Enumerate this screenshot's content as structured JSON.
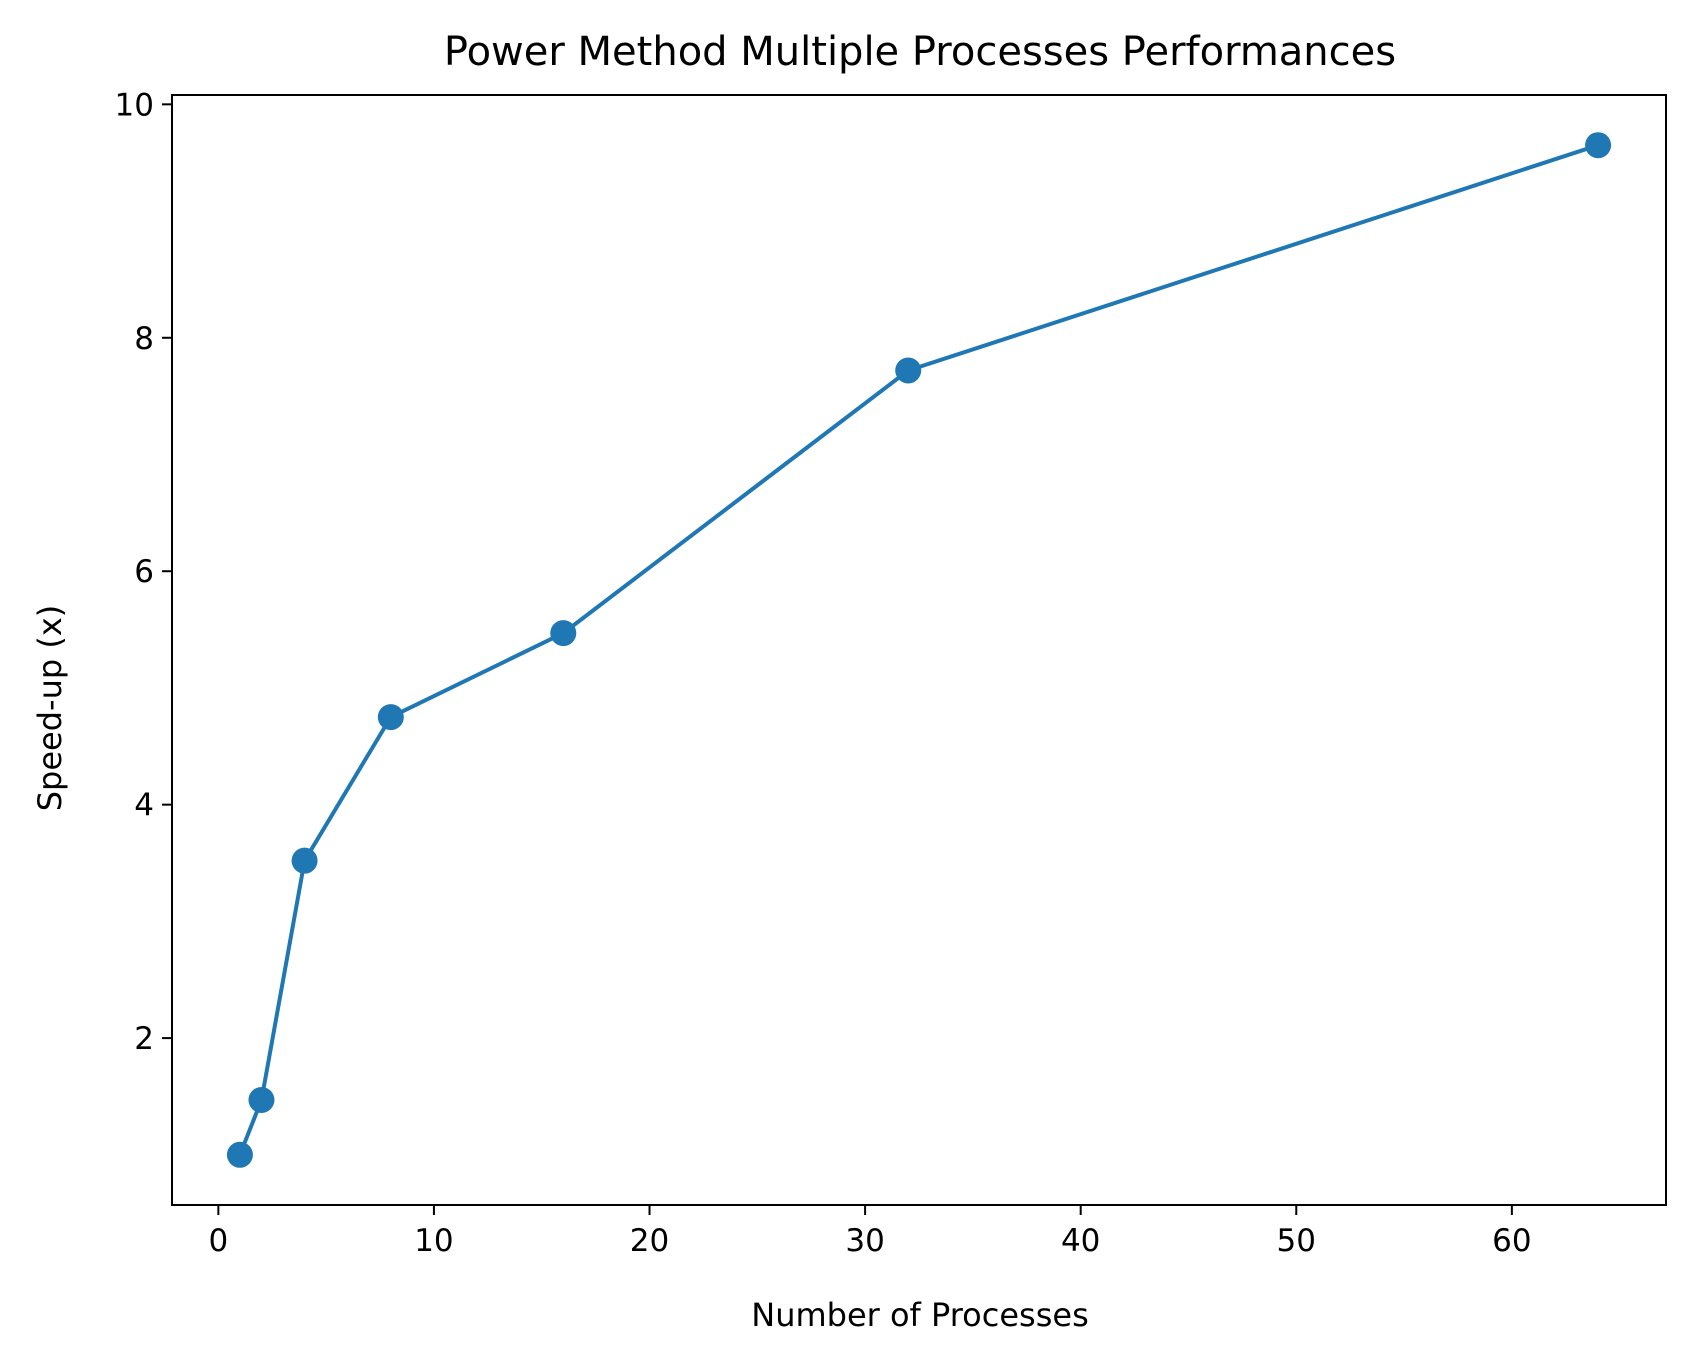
{
  "chart_data": {
    "type": "line",
    "title": "Power Method Multiple Processes Performances",
    "xlabel": "Number of Processes",
    "ylabel": "Speed-up (x)",
    "xlim": [
      -2.15,
      67.15
    ],
    "ylim": [
      0.57,
      10.08
    ],
    "xticks": [
      0,
      10,
      20,
      30,
      40,
      50,
      60
    ],
    "yticks": [
      2,
      4,
      6,
      8,
      10
    ],
    "grid": false,
    "series": [
      {
        "color": "#1f77b4",
        "marker": "circle",
        "x": [
          1,
          2,
          4,
          8,
          16,
          32,
          64
        ],
        "y": [
          1.0,
          1.47,
          3.52,
          4.75,
          5.47,
          7.72,
          9.65
        ]
      }
    ]
  }
}
